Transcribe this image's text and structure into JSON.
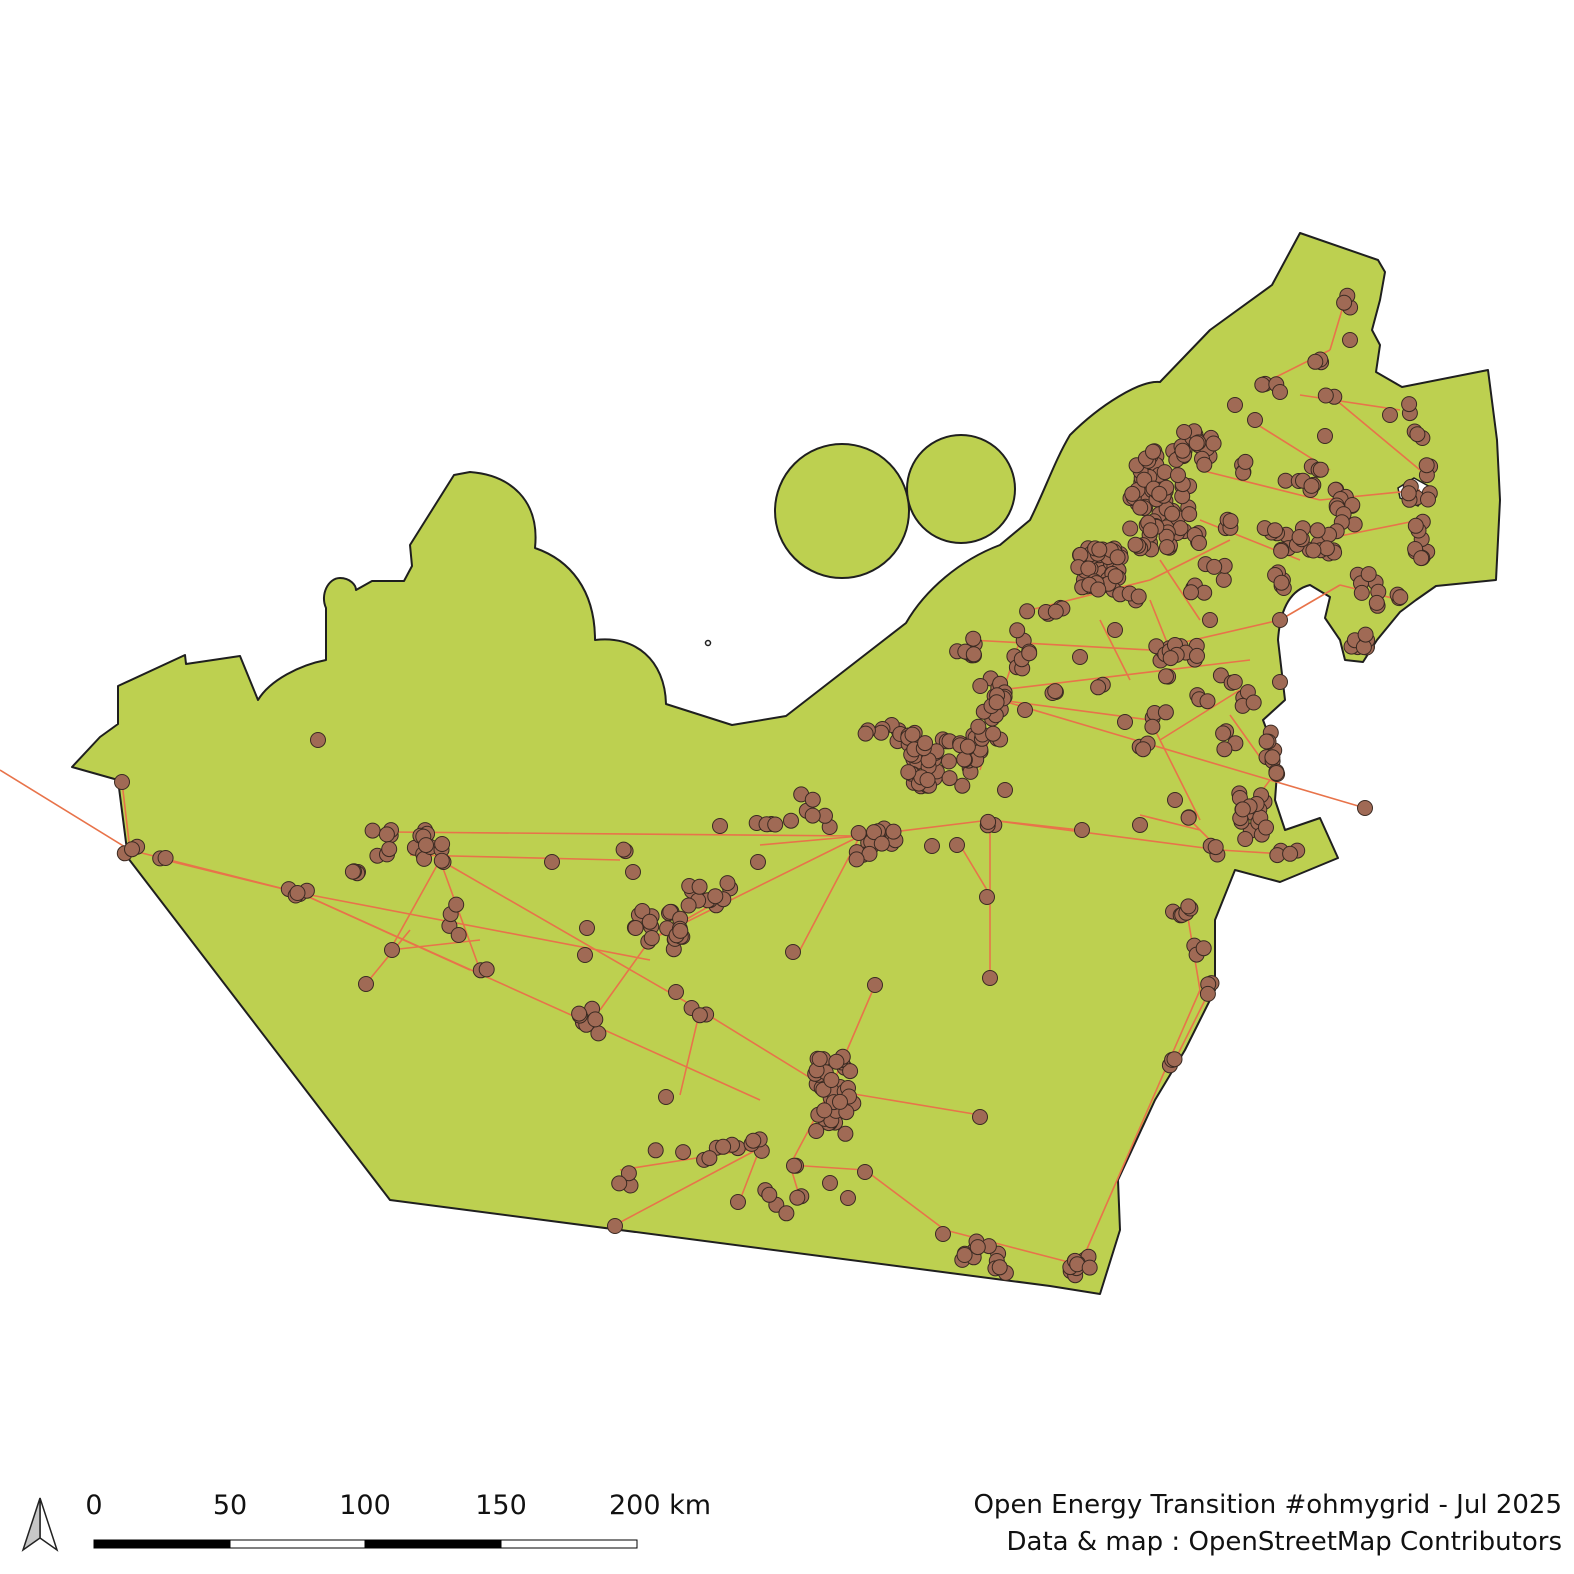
{
  "map": {
    "land_color": "#bdd050",
    "outline_color": "#1f1f1f",
    "line_color": "#e8734a",
    "substation_color": "#a06a55",
    "substation_outline": "#3a2a22"
  },
  "north_arrow": {
    "icon": "north-arrow-icon"
  },
  "scale_bar": {
    "labels": [
      "0",
      "50",
      "100",
      "150",
      "200 km"
    ]
  },
  "credits": {
    "line1": "Open Energy Transition #ohmygrid - Jul 2025",
    "line2": "Data & map : OpenStreetMap Contributors"
  }
}
